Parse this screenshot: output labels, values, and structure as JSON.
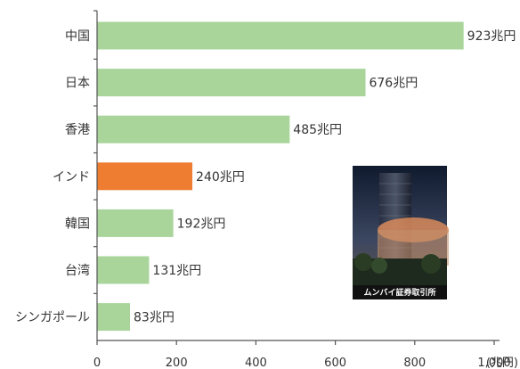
{
  "chart_data": {
    "type": "bar",
    "orientation": "horizontal",
    "categories": [
      "中国",
      "日本",
      "香港",
      "インド",
      "韓国",
      "台湾",
      "シンガポール"
    ],
    "values": [
      923,
      676,
      485,
      240,
      192,
      131,
      83
    ],
    "value_labels": [
      "923兆円",
      "676兆円",
      "485兆円",
      "240兆円",
      "192兆円",
      "131兆円",
      "83兆円"
    ],
    "xlim": [
      0,
      1000
    ],
    "x_ticks": [
      0,
      200,
      400,
      600,
      800,
      1000
    ],
    "x_tick_labels": [
      "0",
      "200",
      "400",
      "600",
      "800",
      "1,000"
    ],
    "x_unit_label": "(兆円)",
    "grid": false,
    "bar_color": "#a9d59b",
    "highlight_color": "#ee7d31",
    "highlight_index": 3
  },
  "photo": {
    "caption": "ムンバイ証券取引所",
    "icon": "stock-exchange-building-photo"
  }
}
